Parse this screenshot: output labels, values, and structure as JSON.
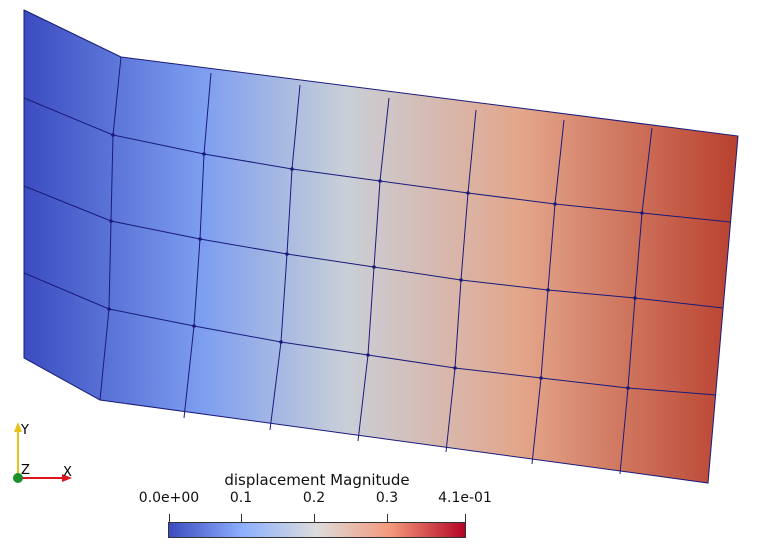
{
  "orientation_axes": {
    "x_label": "X",
    "y_label": "Y",
    "z_label": "Z",
    "x_color": "#e0141e",
    "y_color": "#e6c21a",
    "z_color": "#1a8f2a"
  },
  "legend": {
    "title": "displacement Magnitude",
    "ticks": [
      "0.0e+00",
      "0.1",
      "0.2",
      "0.3",
      "4.1e-01"
    ],
    "colormap": [
      "#3b4cc0",
      "#8db0fe",
      "#dddcdc",
      "#f4987a",
      "#b40426"
    ]
  },
  "mesh": {
    "columns": 8,
    "rows": 4,
    "edge_color": "#1a1a7a"
  }
}
